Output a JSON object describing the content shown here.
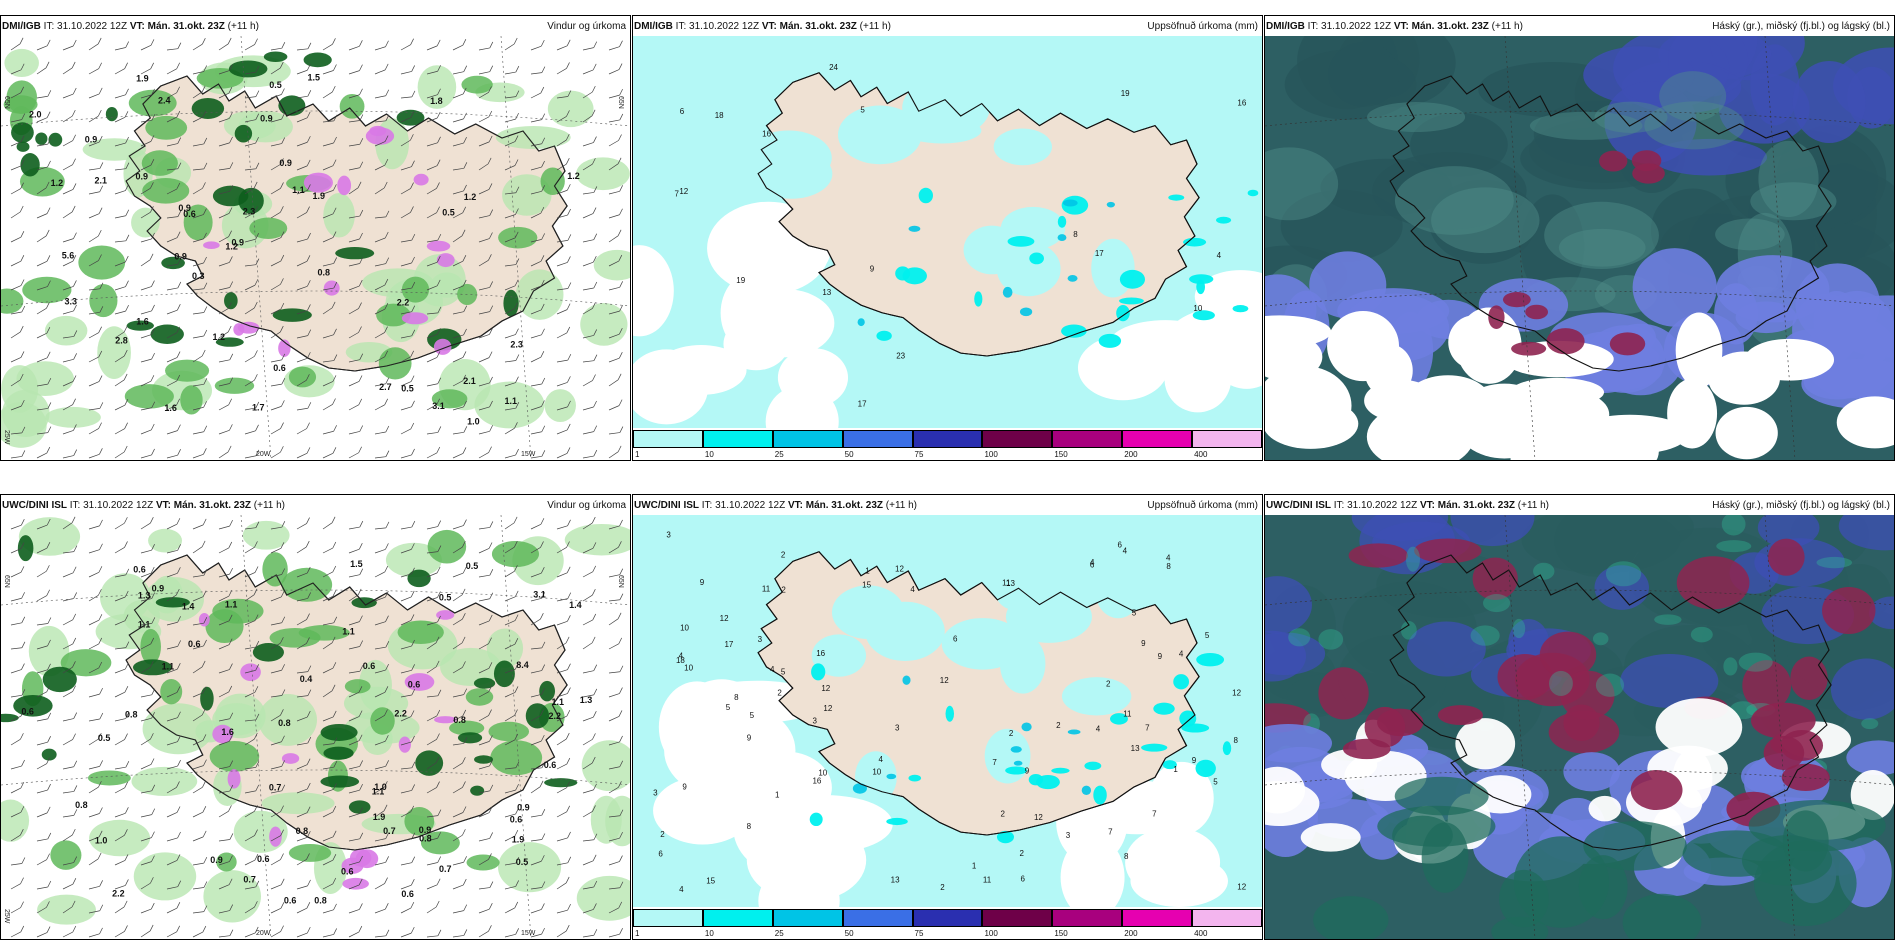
{
  "panels": [
    {
      "model": "DMI/IGB",
      "it_label": "IT:",
      "it": "31.10.2022 12Z",
      "vt_label": "VT:",
      "vt": "Mán. 31.okt. 23Z",
      "lead": "(+11 h)",
      "variable": "Vindur og úrkoma",
      "lon_labels": [
        "20W",
        "15W"
      ],
      "lat_labels": [
        "65N",
        "65N",
        "25W"
      ],
      "values": [
        "2.8",
        "2.7",
        "0.8",
        "5.6",
        "2.4",
        "1.9",
        "1.7",
        "2.3",
        "1.6",
        "1.9",
        "0.9",
        "1.1",
        "1.8",
        "2.2",
        "1.5",
        "0.9",
        "0.9",
        "1.1",
        "2.1",
        "2.1",
        "0.9",
        "0.3",
        "2.0",
        "3.1",
        "1.6",
        "0.5",
        "0.5",
        "1.2",
        "0.5",
        "0.9",
        "1.0",
        "0.9",
        "2.3",
        "1.2",
        "1.2",
        "1.2",
        "3.3",
        "0.6",
        "1.2",
        "0.9",
        "0.6"
      ]
    },
    {
      "model": "DMI/IGB",
      "it_label": "IT:",
      "it": "31.10.2022 12Z",
      "vt_label": "VT:",
      "vt": "Mán. 31.okt. 23Z",
      "lead": "(+11 h)",
      "variable": "Uppsöfnuð úrkoma (mm)",
      "values": [
        "6",
        "19",
        "17",
        "8",
        "10",
        "12",
        "7",
        "19",
        "4",
        "5",
        "18",
        "23",
        "16",
        "16",
        "17",
        "13",
        "9",
        "24"
      ],
      "colorbar_ticks": [
        "1",
        "10",
        "25",
        "50",
        "75",
        "100",
        "150",
        "200",
        "400"
      ]
    },
    {
      "model": "DMI/IGB",
      "it_label": "IT:",
      "it": "31.10.2022 12Z",
      "vt_label": "VT:",
      "vt": "Mán. 31.okt. 23Z",
      "lead": "(+11 h)",
      "variable": "Háský (gr.), miðský (fj.bl.) og lágský (bl.)"
    },
    {
      "model": "UWC/DINI ISL",
      "it_label": "IT:",
      "it": "31.10.2022 12Z",
      "vt_label": "VT:",
      "vt": "Mán. 31.okt. 23Z",
      "lead": "(+11 h)",
      "variable": "Vindur og úrkoma",
      "lon_labels": [
        "20W",
        "15W"
      ],
      "lat_labels": [
        "65N",
        "65N",
        "25W"
      ],
      "values": [
        "0.7",
        "0.8",
        "8.4",
        "0.6",
        "0.5",
        "1.1",
        "0.6",
        "0.5",
        "0.8",
        "0.6",
        "1.1",
        "2.2",
        "0.6",
        "1.5",
        "0.8",
        "0.6",
        "0.5",
        "0.7",
        "0.8",
        "0.9",
        "1.6",
        "1.9",
        "1.3",
        "1.1",
        "1.1",
        "0.7",
        "0.9",
        "1.4",
        "1.0",
        "0.6",
        "1.4",
        "0.5",
        "0.9",
        "0.8",
        "1.1",
        "2.2",
        "0.6",
        "1.1",
        "0.4",
        "1.3",
        "0.6",
        "0.8",
        "0.8",
        "2.2",
        "3.1",
        "1.0",
        "0.6",
        "0.7",
        "0.6",
        "0.6",
        "1.9",
        "0.9"
      ]
    },
    {
      "model": "UWC/DINI ISL",
      "it_label": "IT:",
      "it": "31.10.2022 12Z",
      "vt_label": "VT:",
      "vt": "Mán. 31.okt. 23Z",
      "lead": "(+11 h)",
      "variable": "Uppsöfnuð úrkoma (mm)",
      "values": [
        "2",
        "4",
        "2",
        "3",
        "2",
        "4",
        "2",
        "12",
        "10",
        "8",
        "8",
        "5",
        "3",
        "4",
        "2",
        "5",
        "5",
        "12",
        "6",
        "6",
        "10",
        "10",
        "9",
        "11",
        "13",
        "11",
        "7",
        "4",
        "2",
        "2",
        "1",
        "4",
        "3",
        "5",
        "7",
        "2",
        "3",
        "10",
        "12",
        "9",
        "9",
        "13",
        "12",
        "16",
        "12",
        "17",
        "18",
        "16",
        "13",
        "8",
        "3",
        "4",
        "1",
        "4",
        "8",
        "6",
        "11",
        "12",
        "15",
        "9",
        "1",
        "3",
        "12",
        "12",
        "5",
        "6",
        "9",
        "9",
        "4",
        "11",
        "9",
        "7",
        "8",
        "1",
        "4",
        "2",
        "5",
        "15",
        "6",
        "2",
        "4",
        "7"
      ],
      "colorbar_ticks": [
        "1",
        "10",
        "25",
        "50",
        "75",
        "100",
        "150",
        "200",
        "400"
      ]
    },
    {
      "model": "UWC/DINI ISL",
      "it_label": "IT:",
      "it": "31.10.2022 12Z",
      "vt_label": "VT:",
      "vt": "Mán. 31.okt. 23Z",
      "lead": "(+11 h)",
      "variable": "Háský (gr.), miðský (fj.bl.) og lágský (bl.)"
    }
  ],
  "colors": {
    "land": "#efe1d3",
    "sea": "#ffffff",
    "precip_light": "#b8e6b0",
    "precip_mid": "#5fb85a",
    "precip_heavy": "#0d5e1d",
    "precip_extreme": "#d879e6",
    "accum_low": "#b4f8f6",
    "cloud_high": "#2d5f63",
    "cloud_mid": "#3e4fb4",
    "cloud_low": "#6e7ee0",
    "cloud_red": "#8e2450",
    "colorbar": [
      "#b4f8f6",
      "#00f0ee",
      "#00c4e6",
      "#3a6fe6",
      "#2a2fb0",
      "#6e0048",
      "#a8007e",
      "#e600b0",
      "#f3b5ee"
    ]
  }
}
